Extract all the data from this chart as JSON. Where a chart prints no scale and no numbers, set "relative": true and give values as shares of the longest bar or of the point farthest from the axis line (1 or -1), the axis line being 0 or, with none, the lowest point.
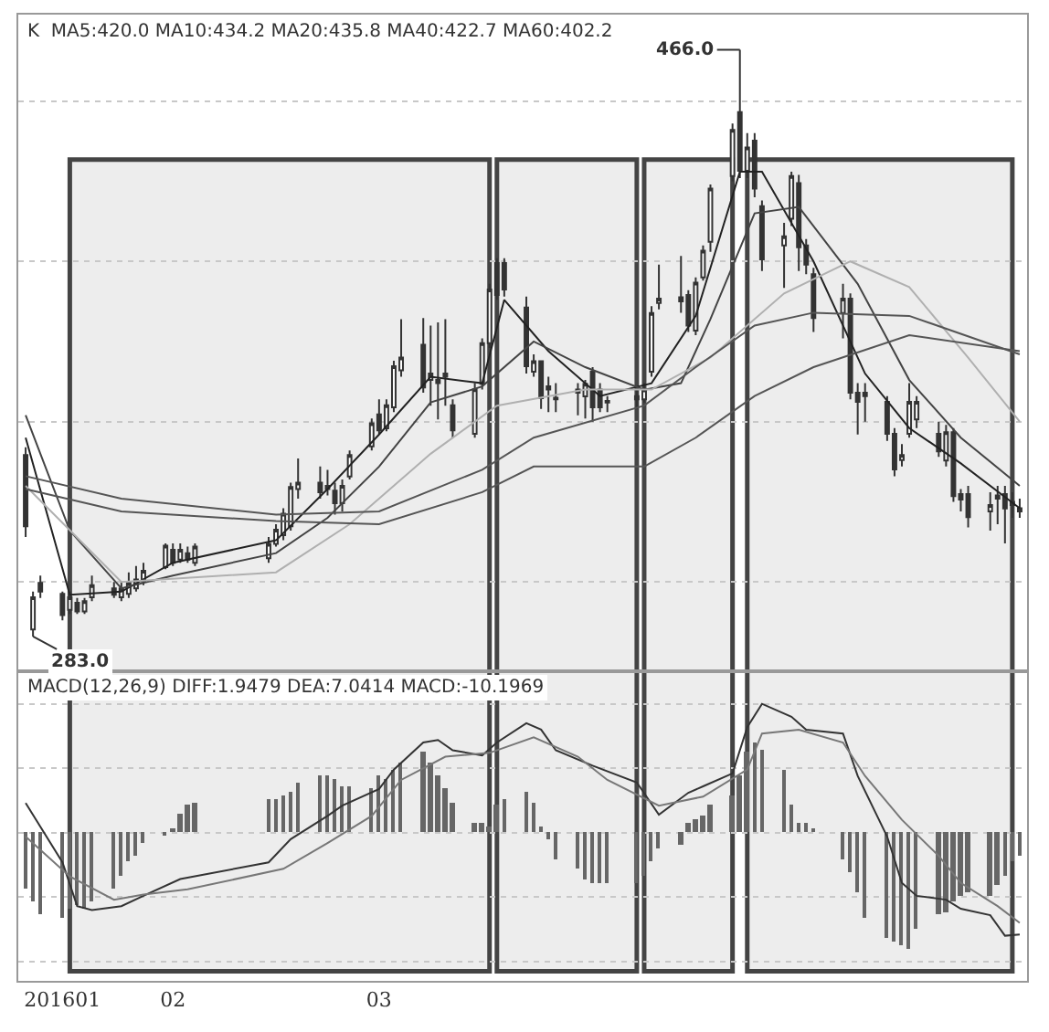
{
  "chart_data": [
    {
      "type": "candlestick",
      "title": "K  MA5:420.0 MA10:434.2 MA20:435.8 MA40:422.7 MA60:402.2",
      "x": [
        "2016-01-13",
        "2016-01-14",
        "2016-01-15",
        "2016-01-18",
        "2016-01-19",
        "2016-01-20",
        "2016-01-21",
        "2016-01-22",
        "2016-01-25",
        "2016-01-26",
        "2016-01-27",
        "2016-01-28",
        "2016-01-29",
        "2016-02-01",
        "2016-02-02",
        "2016-02-03",
        "2016-02-04",
        "2016-02-05",
        "2016-02-15",
        "2016-02-16",
        "2016-02-17",
        "2016-02-18",
        "2016-02-19",
        "2016-02-22",
        "2016-02-23",
        "2016-02-24",
        "2016-02-25",
        "2016-02-26",
        "2016-02-29",
        "2016-03-01",
        "2016-03-02",
        "2016-03-03",
        "2016-03-04",
        "2016-03-07",
        "2016-03-08",
        "2016-03-09",
        "2016-03-10",
        "2016-03-11",
        "2016-03-14",
        "2016-03-15",
        "2016-03-16",
        "2016-03-17",
        "2016-03-18",
        "2016-03-21",
        "2016-03-22",
        "2016-03-23",
        "2016-03-24",
        "2016-03-25",
        "2016-03-28",
        "2016-03-29",
        "2016-03-30",
        "2016-03-31",
        "2016-04-01",
        "2016-04-05",
        "2016-04-06",
        "2016-04-07",
        "2016-04-08",
        "2016-04-11",
        "2016-04-12",
        "2016-04-13",
        "2016-04-14",
        "2016-04-15",
        "2016-04-18",
        "2016-04-19",
        "2016-04-20",
        "2016-04-21",
        "2016-04-22",
        "2016-04-25",
        "2016-04-26",
        "2016-04-27",
        "2016-04-28",
        "2016-04-29",
        "2016-05-03",
        "2016-05-04",
        "2016-05-05",
        "2016-05-06",
        "2016-05-09",
        "2016-05-10",
        "2016-05-11",
        "2016-05-12",
        "2016-05-13",
        "2016-05-16",
        "2016-05-17",
        "2016-05-18",
        "2016-05-19",
        "2016-05-20",
        "2016-05-23",
        "2016-05-24",
        "2016-05-25",
        "2016-05-26",
        "2016-05-27"
      ],
      "ohlc": [
        [
          339.6,
          342,
          314,
          317.4
        ],
        [
          285.2,
          297,
          283,
          295.2
        ],
        [
          299.7,
          302,
          295,
          297
        ],
        [
          296.3,
          297,
          288,
          289.7
        ],
        [
          291.3,
          297,
          290,
          295.2
        ],
        [
          293.5,
          295,
          290,
          290.8
        ],
        [
          290.8,
          295,
          290,
          294
        ],
        [
          295.2,
          302,
          294,
          299
        ],
        [
          298,
          300,
          295,
          296
        ],
        [
          295.2,
          300,
          294,
          298
        ],
        [
          296.3,
          303,
          295,
          299.7
        ],
        [
          298,
          305,
          297,
          300.8
        ],
        [
          300.2,
          306,
          299,
          303.5
        ],
        [
          304.6,
          312,
          304,
          311.3
        ],
        [
          310,
          312,
          305,
          306
        ],
        [
          307,
          312,
          306,
          310
        ],
        [
          309,
          311,
          306,
          307
        ],
        [
          306,
          312,
          305,
          311
        ],
        [
          307.4,
          314,
          306,
          311.9
        ],
        [
          311.9,
          318,
          311,
          316.3
        ],
        [
          314.6,
          323,
          313,
          321.3
        ],
        [
          317.4,
          331,
          316,
          329.6
        ],
        [
          329,
          338.5,
          326,
          331
        ],
        [
          331,
          336,
          326,
          328
        ],
        [
          329,
          335,
          327,
          330
        ],
        [
          328.5,
          331,
          321,
          324.6
        ],
        [
          324.6,
          332,
          322,
          330
        ],
        [
          332.9,
          341,
          332,
          339.6
        ],
        [
          342.3,
          351,
          341,
          349.5
        ],
        [
          352.3,
          357,
          346,
          347.3
        ],
        [
          347.9,
          357,
          347,
          355.1
        ],
        [
          354.5,
          369,
          353,
          367.3
        ],
        [
          366,
          382,
          364,
          370
        ],
        [
          374,
          382.3,
          359,
          360.7
        ],
        [
          363,
          380,
          355,
          365
        ],
        [
          363,
          381,
          350.7,
          362
        ],
        [
          365,
          382,
          355,
          364
        ],
        [
          355.1,
          357,
          345,
          347.3
        ],
        [
          346.2,
          362,
          345,
          360.1
        ],
        [
          361.8,
          376,
          360,
          374.5
        ],
        [
          374.5,
          393,
          373,
          391.2
        ],
        [
          399.5,
          401,
          388,
          389.5
        ],
        [
          399.5,
          401,
          389,
          391.2
        ],
        [
          385.6,
          389,
          365,
          367.3
        ],
        [
          365.6,
          371,
          364,
          368.9
        ],
        [
          368.9,
          369,
          354,
          357.3
        ],
        [
          361,
          364,
          353,
          360
        ],
        [
          357.5,
          362,
          353,
          357
        ],
        [
          359,
          362,
          352,
          360
        ],
        [
          357.9,
          363,
          351,
          361.8
        ],
        [
          365.6,
          367,
          350,
          354.5
        ],
        [
          360,
          362,
          353,
          354.5
        ],
        [
          356,
          358,
          353,
          356.5
        ],
        [
          357,
          360,
          354,
          358
        ],
        [
          357,
          362,
          356,
          360
        ],
        [
          365.6,
          386,
          364,
          383.9
        ],
        [
          387,
          399,
          385,
          388.4
        ],
        [
          388.8,
          401.7,
          384,
          387.5
        ],
        [
          389.5,
          391,
          378,
          380
        ],
        [
          378.4,
          395,
          377,
          393.4
        ],
        [
          395,
          405,
          394,
          403.3
        ],
        [
          406.1,
          424,
          403,
          422.7
        ],
        [
          426.6,
          443,
          425,
          441
        ],
        [
          446.6,
          466,
          426,
          428.3
        ],
        [
          428.3,
          440,
          426,
          435.5
        ],
        [
          437.7,
          440,
          420,
          422.7
        ],
        [
          417.2,
          419,
          397,
          400.6
        ],
        [
          405,
          412,
          391.7,
          407.8
        ],
        [
          413.3,
          428,
          411,
          426.6
        ],
        [
          424.4,
          427,
          397,
          404.4
        ],
        [
          405,
          407,
          396,
          399
        ],
        [
          396,
          398,
          378,
          382.3
        ],
        [
          383.9,
          393,
          376,
          388.4
        ],
        [
          388.4,
          390,
          357,
          359
        ],
        [
          359,
          362,
          346,
          356.2
        ],
        [
          358,
          362,
          350,
          359
        ],
        [
          356.2,
          358,
          344,
          346.2
        ],
        [
          346.2,
          348,
          333,
          335.1
        ],
        [
          338,
          343,
          336,
          339.6
        ],
        [
          346.2,
          362,
          345,
          356.2
        ],
        [
          350.7,
          358,
          348,
          356.2
        ],
        [
          346.2,
          350,
          339,
          340.7
        ],
        [
          337.9,
          349,
          336,
          346.7
        ],
        [
          346.7,
          348,
          325,
          326.8
        ],
        [
          327.4,
          329,
          322,
          325.7
        ],
        [
          327.4,
          330,
          317,
          320.2
        ],
        [
          322,
          328,
          316,
          324
        ],
        [
          326,
          330,
          318,
          327
        ],
        [
          327.4,
          330,
          312,
          322.9
        ],
        [
          324,
          328,
          320,
          325
        ],
        [
          323,
          326,
          320,
          322
        ]
      ],
      "color": "#333333",
      "series": [
        {
          "type": "line",
          "color": "#222222",
          "x": [
            "2016-01-13",
            "2016-01-19",
            "2016-01-26",
            "2016-02-02",
            "2016-02-16",
            "2016-02-23",
            "2016-03-01",
            "2016-03-08",
            "2016-03-15",
            "2016-03-18",
            "2016-03-24",
            "2016-03-31",
            "2016-04-07",
            "2016-04-13",
            "2016-04-19",
            "2016-04-22",
            "2016-04-29",
            "2016-05-06",
            "2016-05-12",
            "2016-05-19",
            "2016-05-27"
          ],
          "values": [
            345,
            296,
            297,
            306,
            313,
            329,
            346,
            364,
            362,
            388,
            372,
            358,
            362,
            383,
            428,
            428,
            400,
            365,
            348,
            337,
            323
          ]
        },
        {
          "type": "line",
          "color": "#444444",
          "x": [
            "2016-01-13",
            "2016-01-19",
            "2016-01-26",
            "2016-02-02",
            "2016-02-16",
            "2016-02-23",
            "2016-03-01",
            "2016-03-08",
            "2016-03-15",
            "2016-03-22",
            "2016-03-29",
            "2016-04-06",
            "2016-04-11",
            "2016-04-15",
            "2016-04-21",
            "2016-04-27",
            "2016-05-05",
            "2016-05-12",
            "2016-05-19",
            "2016-05-27"
          ],
          "values": [
            352,
            316,
            298,
            302,
            309,
            320,
            336,
            356,
            361,
            375,
            367,
            360,
            362,
            382,
            415,
            417,
            393,
            363,
            345,
            330
          ]
        },
        {
          "type": "line",
          "color": "#b0b0b0",
          "x": [
            "2016-01-13",
            "2016-01-26",
            "2016-02-16",
            "2016-02-26",
            "2016-03-08",
            "2016-03-17",
            "2016-03-29",
            "2016-04-07",
            "2016-04-15",
            "2016-04-25",
            "2016-05-04",
            "2016-05-12",
            "2016-05-20",
            "2016-05-27"
          ],
          "values": [
            330,
            300,
            303,
            318,
            340,
            355,
            360,
            360,
            370,
            390,
            400,
            392,
            370,
            350
          ]
        },
        {
          "type": "line",
          "color": "#555555",
          "x": [
            "2016-01-13",
            "2016-01-26",
            "2016-02-16",
            "2016-03-01",
            "2016-03-15",
            "2016-03-22",
            "2016-04-06",
            "2016-04-13",
            "2016-04-21",
            "2016-04-29",
            "2016-05-12",
            "2016-05-27"
          ],
          "values": [
            333,
            326,
            321,
            322,
            335,
            345,
            355,
            367,
            380,
            384,
            383,
            371
          ]
        },
        {
          "type": "line",
          "color": "#555555",
          "x": [
            "2016-01-13",
            "2016-01-26",
            "2016-02-16",
            "2016-03-01",
            "2016-03-15",
            "2016-03-22",
            "2016-04-06",
            "2016-04-13",
            "2016-04-21",
            "2016-04-29",
            "2016-05-12",
            "2016-05-27"
          ],
          "values": [
            329,
            322,
            319,
            318,
            328,
            336,
            336,
            345,
            358,
            367,
            377,
            372
          ]
        }
      ],
      "annotations": [
        {
          "text": "466.0",
          "x": "2016-04-19",
          "y": 466
        },
        {
          "text": "283.0",
          "x": "2016-01-14",
          "y": 283
        }
      ],
      "bands": [
        {
          "axis": "x",
          "from": "2016-01-19",
          "to": "2016-03-16"
        },
        {
          "axis": "x",
          "from": "2016-03-17",
          "to": "2016-04-05"
        },
        {
          "axis": "x",
          "from": "2016-04-06",
          "to": "2016-04-18"
        },
        {
          "axis": "x",
          "from": "2016-04-20",
          "to": "2016-05-26"
        }
      ],
      "xlim": [
        "2016-01-12",
        "2016-05-28"
      ],
      "grid": "y",
      "tick_labels": false
    },
    {
      "type": "bar",
      "relative": true,
      "title": "MACD(12,26,9) DIFF:1.9479 DEA:7.0414 MACD:-10.1969",
      "x": [
        "2016-01-13",
        "2016-01-14",
        "2016-01-15",
        "2016-01-18",
        "2016-01-19",
        "2016-01-20",
        "2016-01-21",
        "2016-01-22",
        "2016-01-25",
        "2016-01-26",
        "2016-01-27",
        "2016-01-28",
        "2016-01-29",
        "2016-02-01",
        "2016-02-02",
        "2016-02-03",
        "2016-02-04",
        "2016-02-05",
        "2016-02-15",
        "2016-02-16",
        "2016-02-17",
        "2016-02-18",
        "2016-02-19",
        "2016-02-22",
        "2016-02-23",
        "2016-02-24",
        "2016-02-25",
        "2016-02-26",
        "2016-02-29",
        "2016-03-01",
        "2016-03-02",
        "2016-03-03",
        "2016-03-04",
        "2016-03-07",
        "2016-03-08",
        "2016-03-09",
        "2016-03-10",
        "2016-03-11",
        "2016-03-14",
        "2016-03-15",
        "2016-03-16",
        "2016-03-17",
        "2016-03-18",
        "2016-03-21",
        "2016-03-22",
        "2016-03-23",
        "2016-03-24",
        "2016-03-25",
        "2016-03-28",
        "2016-03-29",
        "2016-03-30",
        "2016-03-31",
        "2016-04-01",
        "2016-04-05",
        "2016-04-06",
        "2016-04-07",
        "2016-04-08",
        "2016-04-11",
        "2016-04-12",
        "2016-04-13",
        "2016-04-14",
        "2016-04-15",
        "2016-04-18",
        "2016-04-19",
        "2016-04-20",
        "2016-04-21",
        "2016-04-22",
        "2016-04-25",
        "2016-04-26",
        "2016-04-27",
        "2016-04-28",
        "2016-04-29",
        "2016-05-03",
        "2016-05-04",
        "2016-05-05",
        "2016-05-06",
        "2016-05-09",
        "2016-05-10",
        "2016-05-11",
        "2016-05-12",
        "2016-05-13",
        "2016-05-16",
        "2016-05-17",
        "2016-05-18",
        "2016-05-19",
        "2016-05-20",
        "2016-05-23",
        "2016-05-24",
        "2016-05-25",
        "2016-05-26",
        "2016-05-27"
      ],
      "values": [
        -0.44,
        -0.54,
        -0.64,
        -0.67,
        -0.59,
        -0.57,
        -0.59,
        -0.54,
        -0.44,
        -0.34,
        -0.23,
        -0.18,
        -0.08,
        -0.02,
        0.03,
        0.15,
        0.21,
        0.23,
        0.26,
        0.26,
        0.28,
        0.31,
        0.39,
        0.44,
        0.44,
        0.41,
        0.36,
        0.36,
        0.34,
        0.44,
        0.41,
        0.49,
        0.54,
        0.62,
        0.54,
        0.44,
        0.34,
        0.23,
        0.08,
        0.07,
        0.05,
        0.21,
        0.26,
        0.31,
        0.23,
        0.05,
        -0.05,
        -0.21,
        -0.28,
        -0.36,
        -0.39,
        -0.39,
        -0.39,
        -0.39,
        -0.34,
        -0.23,
        -0.13,
        -0.09,
        0.08,
        0.1,
        0.13,
        0.21,
        0.28,
        0.44,
        0.62,
        0.7,
        0.64,
        0.49,
        0.21,
        0.08,
        0.08,
        0.03,
        -0.21,
        -0.31,
        -0.46,
        -0.67,
        -0.82,
        -0.85,
        -0.88,
        -0.9,
        -0.75,
        -0.64,
        -0.62,
        -0.54,
        -0.49,
        -0.46,
        -0.49,
        -0.41,
        -0.34,
        -0.23,
        -0.18
      ],
      "color": "#666666",
      "series": [
        {
          "type": "line",
          "color": "#333333",
          "x": [
            "2016-01-13",
            "2016-01-18",
            "2016-01-20",
            "2016-01-22",
            "2016-01-26",
            "2016-01-29",
            "2016-02-03",
            "2016-02-15",
            "2016-02-18",
            "2016-02-23",
            "2016-02-25",
            "2016-03-01",
            "2016-03-03",
            "2016-03-07",
            "2016-03-09",
            "2016-03-11",
            "2016-03-15",
            "2016-03-17",
            "2016-03-21",
            "2016-03-23",
            "2016-03-25",
            "2016-03-30",
            "2016-04-05",
            "2016-04-08",
            "2016-04-12",
            "2016-04-14",
            "2016-04-18",
            "2016-04-20",
            "2016-04-22",
            "2016-04-26",
            "2016-04-28",
            "2016-05-03",
            "2016-05-05",
            "2016-05-09",
            "2016-05-11",
            "2016-05-13",
            "2016-05-17",
            "2016-05-19",
            "2016-05-23",
            "2016-05-25",
            "2016-05-27"
          ],
          "values": [
            0.23,
            -0.23,
            -0.57,
            -0.6,
            -0.57,
            -0.49,
            -0.36,
            -0.23,
            -0.05,
            0.13,
            0.21,
            0.34,
            0.49,
            0.7,
            0.72,
            0.64,
            0.6,
            0.7,
            0.85,
            0.8,
            0.64,
            0.52,
            0.39,
            0.14,
            0.31,
            0.36,
            0.46,
            0.82,
            1,
            0.9,
            0.8,
            0.77,
            0.44,
            -0.03,
            -0.39,
            -0.49,
            -0.52,
            -0.59,
            -0.64,
            -0.8,
            -0.79
          ]
        },
        {
          "type": "line",
          "color": "#777777",
          "x": [
            "2016-01-13",
            "2016-01-19",
            "2016-01-25",
            "2016-01-29",
            "2016-02-04",
            "2016-02-17",
            "2016-02-23",
            "2016-02-29",
            "2016-03-04",
            "2016-03-10",
            "2016-03-16",
            "2016-03-22",
            "2016-03-28",
            "2016-04-01",
            "2016-04-08",
            "2016-04-14",
            "2016-04-20",
            "2016-04-22",
            "2016-04-27",
            "2016-05-03",
            "2016-05-06",
            "2016-05-11",
            "2016-05-16",
            "2016-05-19",
            "2016-05-24",
            "2016-05-27"
          ],
          "values": [
            -0.03,
            -0.34,
            -0.52,
            -0.48,
            -0.44,
            -0.28,
            -0.08,
            0.13,
            0.41,
            0.59,
            0.62,
            0.74,
            0.59,
            0.41,
            0.21,
            0.28,
            0.49,
            0.77,
            0.8,
            0.7,
            0.44,
            0.1,
            -0.18,
            -0.39,
            -0.57,
            -0.7
          ]
        }
      ],
      "xlim": [
        "2016-01-12",
        "2016-05-28"
      ],
      "xticks": [
        {
          "value": "2016-01-18",
          "label": "201601"
        },
        {
          "value": "2016-02-02",
          "label": "02"
        },
        {
          "value": "2016-03-01",
          "label": "03"
        }
      ],
      "grid": "y",
      "tick_labels": "x"
    }
  ]
}
